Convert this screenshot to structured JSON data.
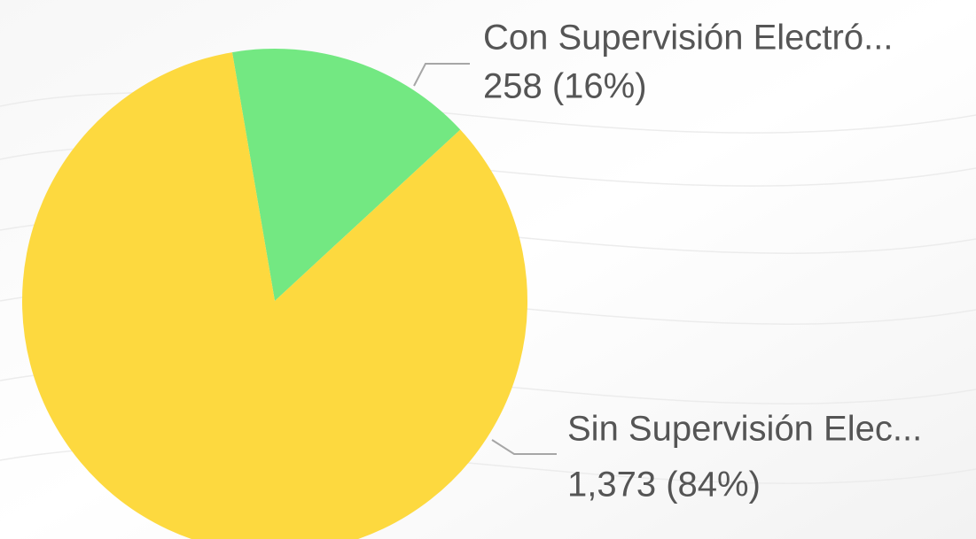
{
  "chart_data": {
    "type": "pie",
    "categories": [
      "Con Supervisión Electró...",
      "Sin Supervisión Elec..."
    ],
    "values": [
      258,
      1373
    ],
    "value_labels": [
      "258 (16%)",
      "1,373 (84%)"
    ],
    "colors": [
      "#73e882",
      "#fdd93f"
    ]
  }
}
